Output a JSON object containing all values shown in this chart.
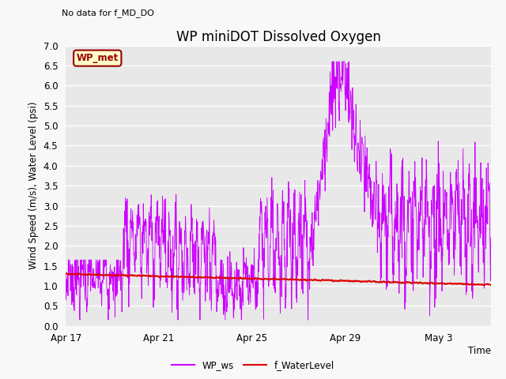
{
  "title": "WP miniDOT Dissolved Oxygen",
  "top_left_text": "No data for f_MD_DO",
  "ylabel": "Wind Speed (m/s), Water Level (psi)",
  "xlabel": "Time",
  "legend_label1": "WP_ws",
  "legend_label2": "f_WaterLevel",
  "legend_color1": "#cc00ff",
  "legend_color2": "#dd0000",
  "inset_label": "WP_met",
  "inset_facecolor": "#ffffcc",
  "inset_edgecolor": "#990000",
  "inset_textcolor": "#990000",
  "ylim": [
    0.0,
    7.0
  ],
  "fig_facecolor": "#f8f8f8",
  "plot_bg_color": "#e8e8e8",
  "grid_color": "#ffffff",
  "title_fontsize": 12,
  "axis_label_fontsize": 8.5,
  "tick_label_fontsize": 8.5
}
